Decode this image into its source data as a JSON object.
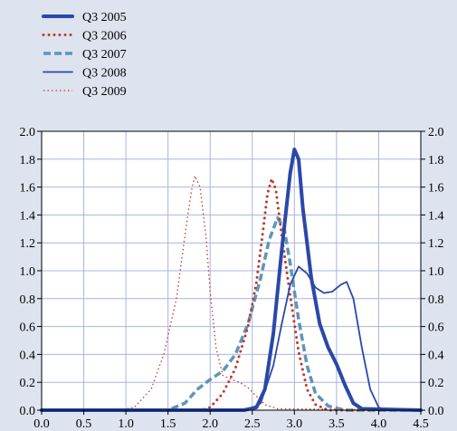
{
  "chart_data": {
    "type": "line",
    "title": "",
    "xlabel": "",
    "ylabel": "",
    "xlim": [
      0.0,
      4.5
    ],
    "ylim": [
      0.0,
      2.0
    ],
    "grid": true,
    "legend_position": "top-left",
    "x_ticks": [
      "0.0",
      "0.5",
      "1.0",
      "1.5",
      "2.0",
      "2.5",
      "3.0",
      "3.5",
      "4.0",
      "4.5"
    ],
    "y_ticks": [
      "0.0",
      "0.2",
      "0.4",
      "0.6",
      "0.8",
      "1.0",
      "1.2",
      "1.4",
      "1.6",
      "1.8",
      "2.0"
    ],
    "series": [
      {
        "name": "Q3 2005",
        "color": "#2b48a8",
        "style": "solid-thick",
        "points": [
          [
            0.0,
            0.0
          ],
          [
            2.4,
            0.0
          ],
          [
            2.55,
            0.02
          ],
          [
            2.65,
            0.15
          ],
          [
            2.75,
            0.55
          ],
          [
            2.85,
            1.15
          ],
          [
            2.95,
            1.7
          ],
          [
            3.0,
            1.87
          ],
          [
            3.05,
            1.8
          ],
          [
            3.1,
            1.45
          ],
          [
            3.2,
            0.95
          ],
          [
            3.3,
            0.62
          ],
          [
            3.4,
            0.45
          ],
          [
            3.5,
            0.33
          ],
          [
            3.6,
            0.18
          ],
          [
            3.7,
            0.05
          ],
          [
            3.8,
            0.01
          ],
          [
            4.5,
            0.0
          ]
        ]
      },
      {
        "name": "Q3 2006",
        "color": "#c0392b",
        "style": "dotted-thick",
        "points": [
          [
            0.0,
            0.0
          ],
          [
            1.9,
            0.0
          ],
          [
            2.0,
            0.02
          ],
          [
            2.15,
            0.12
          ],
          [
            2.3,
            0.3
          ],
          [
            2.45,
            0.6
          ],
          [
            2.55,
            0.92
          ],
          [
            2.62,
            1.25
          ],
          [
            2.68,
            1.55
          ],
          [
            2.73,
            1.66
          ],
          [
            2.78,
            1.58
          ],
          [
            2.85,
            1.25
          ],
          [
            2.95,
            0.82
          ],
          [
            3.05,
            0.42
          ],
          [
            3.15,
            0.15
          ],
          [
            3.25,
            0.04
          ],
          [
            3.4,
            0.0
          ],
          [
            4.5,
            0.0
          ]
        ]
      },
      {
        "name": "Q3 2007",
        "color": "#5d96b8",
        "style": "dashed-thick",
        "points": [
          [
            0.0,
            0.0
          ],
          [
            1.5,
            0.0
          ],
          [
            1.7,
            0.05
          ],
          [
            1.85,
            0.15
          ],
          [
            2.0,
            0.22
          ],
          [
            2.15,
            0.28
          ],
          [
            2.3,
            0.4
          ],
          [
            2.45,
            0.62
          ],
          [
            2.6,
            0.95
          ],
          [
            2.7,
            1.22
          ],
          [
            2.8,
            1.38
          ],
          [
            2.88,
            1.3
          ],
          [
            2.95,
            1.05
          ],
          [
            3.05,
            0.65
          ],
          [
            3.15,
            0.32
          ],
          [
            3.25,
            0.12
          ],
          [
            3.4,
            0.03
          ],
          [
            3.6,
            0.0
          ],
          [
            4.5,
            0.0
          ]
        ]
      },
      {
        "name": "Q3 2008",
        "color": "#2b48a8",
        "style": "solid-thin",
        "points": [
          [
            0.0,
            0.0
          ],
          [
            2.45,
            0.0
          ],
          [
            2.6,
            0.05
          ],
          [
            2.75,
            0.32
          ],
          [
            2.85,
            0.62
          ],
          [
            2.95,
            0.9
          ],
          [
            3.05,
            1.03
          ],
          [
            3.15,
            0.98
          ],
          [
            3.25,
            0.88
          ],
          [
            3.35,
            0.84
          ],
          [
            3.45,
            0.85
          ],
          [
            3.55,
            0.9
          ],
          [
            3.62,
            0.92
          ],
          [
            3.7,
            0.8
          ],
          [
            3.8,
            0.45
          ],
          [
            3.9,
            0.15
          ],
          [
            4.0,
            0.02
          ],
          [
            4.1,
            0.0
          ],
          [
            4.5,
            0.0
          ]
        ]
      },
      {
        "name": "Q3 2009",
        "color": "#c0392b",
        "style": "dotted-thin",
        "points": [
          [
            0.0,
            0.0
          ],
          [
            0.9,
            0.0
          ],
          [
            1.1,
            0.02
          ],
          [
            1.3,
            0.15
          ],
          [
            1.45,
            0.4
          ],
          [
            1.6,
            0.8
          ],
          [
            1.7,
            1.25
          ],
          [
            1.78,
            1.58
          ],
          [
            1.82,
            1.68
          ],
          [
            1.88,
            1.6
          ],
          [
            1.95,
            1.25
          ],
          [
            2.0,
            0.85
          ],
          [
            2.07,
            0.45
          ],
          [
            2.15,
            0.25
          ],
          [
            2.25,
            0.22
          ],
          [
            2.35,
            0.2
          ],
          [
            2.45,
            0.16
          ],
          [
            2.55,
            0.1
          ],
          [
            2.65,
            0.04
          ],
          [
            2.8,
            0.01
          ],
          [
            4.5,
            0.0
          ]
        ]
      }
    ]
  }
}
